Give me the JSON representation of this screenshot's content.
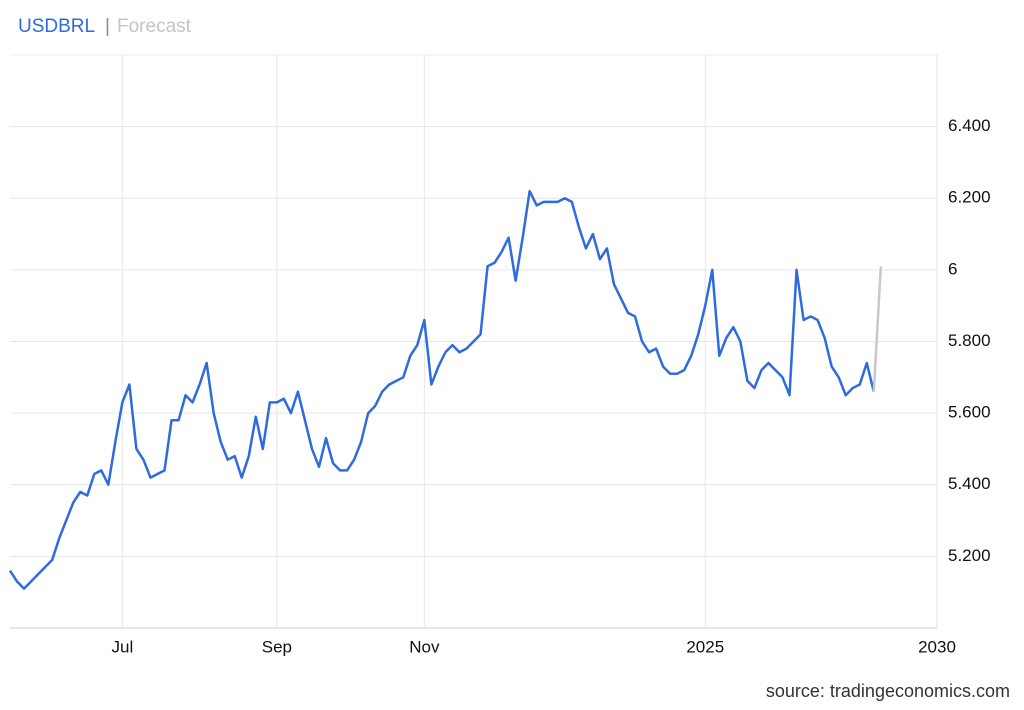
{
  "chart_data": {
    "type": "line",
    "header": {
      "separator": "|"
    },
    "source": "source: tradingeconomics.com",
    "categories": [
      null,
      null,
      null,
      null,
      null,
      null,
      null,
      null,
      null,
      null,
      null,
      null,
      null,
      null,
      null,
      null,
      "Jul",
      null,
      null,
      null,
      null,
      null,
      null,
      null,
      null,
      null,
      null,
      null,
      null,
      null,
      null,
      null,
      null,
      null,
      null,
      null,
      null,
      null,
      "Sep",
      null,
      null,
      null,
      null,
      null,
      null,
      null,
      null,
      null,
      null,
      null,
      null,
      null,
      null,
      null,
      null,
      null,
      null,
      null,
      null,
      "Nov",
      null,
      null,
      null,
      null,
      null,
      null,
      null,
      null,
      null,
      null,
      null,
      null,
      null,
      null,
      null,
      null,
      null,
      null,
      null,
      null,
      null,
      null,
      null,
      null,
      null,
      null,
      null,
      null,
      null,
      null,
      null,
      null,
      null,
      null,
      null,
      null,
      null,
      null,
      null,
      "2025",
      null,
      null,
      null,
      null,
      null,
      null,
      null,
      null,
      null,
      null,
      null,
      null,
      null,
      null,
      null,
      null,
      null,
      null,
      null,
      null,
      null,
      null,
      null,
      null,
      null,
      null,
      null,
      null,
      null,
      null,
      null,
      null,
      "2030"
    ],
    "series": [
      {
        "name": "USDBRL",
        "color": "#2f6be0",
        "values": [
          5.16,
          5.13,
          5.11,
          5.13,
          5.15,
          5.17,
          5.19,
          5.25,
          5.3,
          5.35,
          5.38,
          5.37,
          5.43,
          5.44,
          5.4,
          5.52,
          5.63,
          5.68,
          5.5,
          5.47,
          5.42,
          5.43,
          5.44,
          5.58,
          5.58,
          5.65,
          5.63,
          5.68,
          5.74,
          5.6,
          5.52,
          5.47,
          5.48,
          5.42,
          5.48,
          5.59,
          5.5,
          5.63,
          5.63,
          5.64,
          5.6,
          5.66,
          5.58,
          5.5,
          5.45,
          5.53,
          5.46,
          5.44,
          5.44,
          5.47,
          5.52,
          5.6,
          5.62,
          5.66,
          5.68,
          5.69,
          5.7,
          5.76,
          5.79,
          5.86,
          5.68,
          5.73,
          5.77,
          5.79,
          5.77,
          5.78,
          5.8,
          5.82,
          6.01,
          6.02,
          6.05,
          6.09,
          5.97,
          6.09,
          6.22,
          6.18,
          6.19,
          6.19,
          6.19,
          6.2,
          6.19,
          6.12,
          6.06,
          6.1,
          6.03,
          6.06,
          5.96,
          5.92,
          5.88,
          5.87,
          5.8,
          5.77,
          5.78,
          5.73,
          5.71,
          5.71,
          5.72,
          5.76,
          5.82,
          5.9,
          6.0,
          5.76,
          5.81,
          5.84,
          5.8,
          5.69,
          5.67,
          5.72,
          5.74,
          5.72,
          5.7,
          5.65,
          6.0,
          5.86,
          5.87,
          5.86,
          5.81,
          5.73,
          5.7,
          5.65,
          5.67,
          5.68,
          5.74,
          5.66,
          null,
          null,
          null,
          null,
          null,
          null,
          null,
          null,
          null
        ]
      },
      {
        "name": "Forecast",
        "color": "#c8c8c8",
        "values": [
          null,
          null,
          null,
          null,
          null,
          null,
          null,
          null,
          null,
          null,
          null,
          null,
          null,
          null,
          null,
          null,
          null,
          null,
          null,
          null,
          null,
          null,
          null,
          null,
          null,
          null,
          null,
          null,
          null,
          null,
          null,
          null,
          null,
          null,
          null,
          null,
          null,
          null,
          null,
          null,
          null,
          null,
          null,
          null,
          null,
          null,
          null,
          null,
          null,
          null,
          null,
          null,
          null,
          null,
          null,
          null,
          null,
          null,
          null,
          null,
          null,
          null,
          null,
          null,
          null,
          null,
          null,
          null,
          null,
          null,
          null,
          null,
          null,
          null,
          null,
          null,
          null,
          null,
          null,
          null,
          null,
          null,
          null,
          null,
          null,
          null,
          null,
          null,
          null,
          null,
          null,
          null,
          null,
          null,
          null,
          null,
          null,
          null,
          null,
          null,
          null,
          null,
          null,
          null,
          null,
          null,
          null,
          null,
          null,
          null,
          null,
          null,
          null,
          null,
          null,
          null,
          null,
          null,
          null,
          null,
          null,
          null,
          null,
          5.66,
          6.01,
          null,
          null,
          null,
          null,
          null,
          null,
          null,
          null
        ]
      }
    ],
    "ylim": [
      5.0,
      6.6
    ],
    "yticks": [
      {
        "value": 5.2,
        "label": "5.200"
      },
      {
        "value": 5.4,
        "label": "5.400"
      },
      {
        "value": 5.6,
        "label": "5.600"
      },
      {
        "value": 5.8,
        "label": "5.800"
      },
      6,
      {
        "value": 6.2,
        "label": "6.200"
      },
      {
        "value": 6.4,
        "label": "6.400"
      }
    ],
    "grid": true
  }
}
